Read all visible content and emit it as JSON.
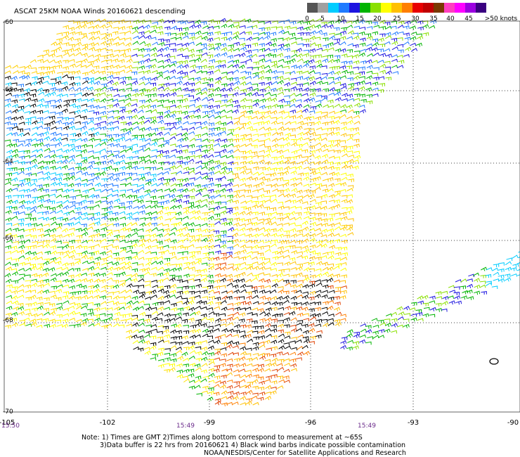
{
  "header": {
    "title": "ASCAT 25KM NOAA Winds 20160621 descending"
  },
  "legend": {
    "colors": [
      "#555555",
      "#a0a0a0",
      "#00ccff",
      "#1f7aff",
      "#1c14e0",
      "#00b400",
      "#8ae000",
      "#ffff00",
      "#ffc000",
      "#ff7f00",
      "#e80000",
      "#c00000",
      "#7a3800",
      "#ff3fbf",
      "#ff00ff",
      "#9b00e0",
      "#3a0080"
    ],
    "labels": [
      "0",
      "5",
      "10",
      "15",
      "20",
      "25",
      "30",
      "35",
      "40",
      "45",
      ">50 knots"
    ]
  },
  "axes": {
    "lat_labels": [
      "-60",
      "-62",
      "-64",
      "-66",
      "-68",
      "-70"
    ],
    "lon_labels": [
      "-105",
      "-102",
      "-99",
      "-96",
      "-93",
      "-90"
    ]
  },
  "swath_times": [
    "15:50",
    "15:49",
    "15:49"
  ],
  "notes": {
    "line1": "Note: 1) Times are GMT 2)Times along bottom correspond to measurement at ~65S",
    "line2": "3)Data buffer is 22 hrs from 20160621 4) Black wind barbs indicate possible contamination",
    "line3": "NOAA/NESDIS/Center for Satellite Applications and Research"
  }
}
